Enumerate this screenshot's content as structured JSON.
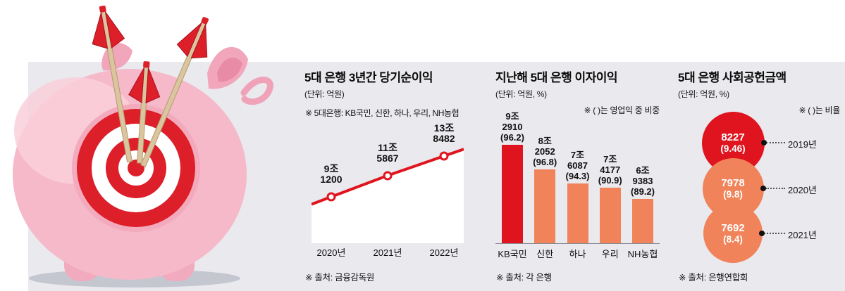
{
  "palette": {
    "panel_bg": "#e9e9ee",
    "red": "#e0141e",
    "orange": "#f0835a",
    "axis_gray": "#8a8a92"
  },
  "chart_data": [
    {
      "type": "line",
      "title": "5대 은행 3년간 당기순이익",
      "unit": "(단위: 억원)",
      "note": "※ 5대은행: KB국민, 신한, 하나, 우리, NH농협",
      "source": "※ 출처: 금융감독원",
      "categories": [
        "2020년",
        "2021년",
        "2022년"
      ],
      "values": [
        91200,
        115867,
        138482
      ],
      "value_labels": [
        [
          "9조",
          "1200"
        ],
        [
          "11조",
          "5867"
        ],
        [
          "13조",
          "8482"
        ]
      ],
      "line_color": "#e0141e",
      "area_color": "#ffffff"
    },
    {
      "type": "bar",
      "title": "지난해 5대 은행 이자이익",
      "unit": "(단위: 억원, %)",
      "note": "※ ( )는 영업익 중 비중",
      "source": "※ 출처: 각 은행",
      "categories": [
        "KB국민",
        "신한",
        "하나",
        "우리",
        "NH농협"
      ],
      "values": [
        92910,
        82052,
        76087,
        74177,
        69383
      ],
      "share_of_operating_profit_pct": [
        96.2,
        96.8,
        94.3,
        90.9,
        89.2
      ],
      "value_labels": [
        [
          "9조",
          "2910",
          "(96.2)"
        ],
        [
          "8조",
          "2052",
          "(96.8)"
        ],
        [
          "7조",
          "6087",
          "(94.3)"
        ],
        [
          "7조",
          "4177",
          "(90.9)"
        ],
        [
          "6조",
          "9383",
          "(89.2)"
        ]
      ],
      "bar_colors": [
        "#e0141e",
        "#f0835a",
        "#f0835a",
        "#f0835a",
        "#f0835a"
      ]
    },
    {
      "type": "bubble",
      "title": "5대 은행 사회공헌금액",
      "unit": "(단위: 억원, %)",
      "note": "※ ( )는 비율",
      "source": "※ 출처: 은행연합회",
      "categories": [
        "2019년",
        "2020년",
        "2021년"
      ],
      "values": [
        8227,
        7978,
        7692
      ],
      "ratio_pct": [
        9.46,
        9.8,
        8.4
      ],
      "value_labels": [
        [
          "8227",
          "(9.46)"
        ],
        [
          "7978",
          "(9.8)"
        ],
        [
          "7692",
          "(8.4)"
        ]
      ],
      "bubble_colors": [
        "#e0141e",
        "#f0835a",
        "#f0835a"
      ]
    }
  ]
}
